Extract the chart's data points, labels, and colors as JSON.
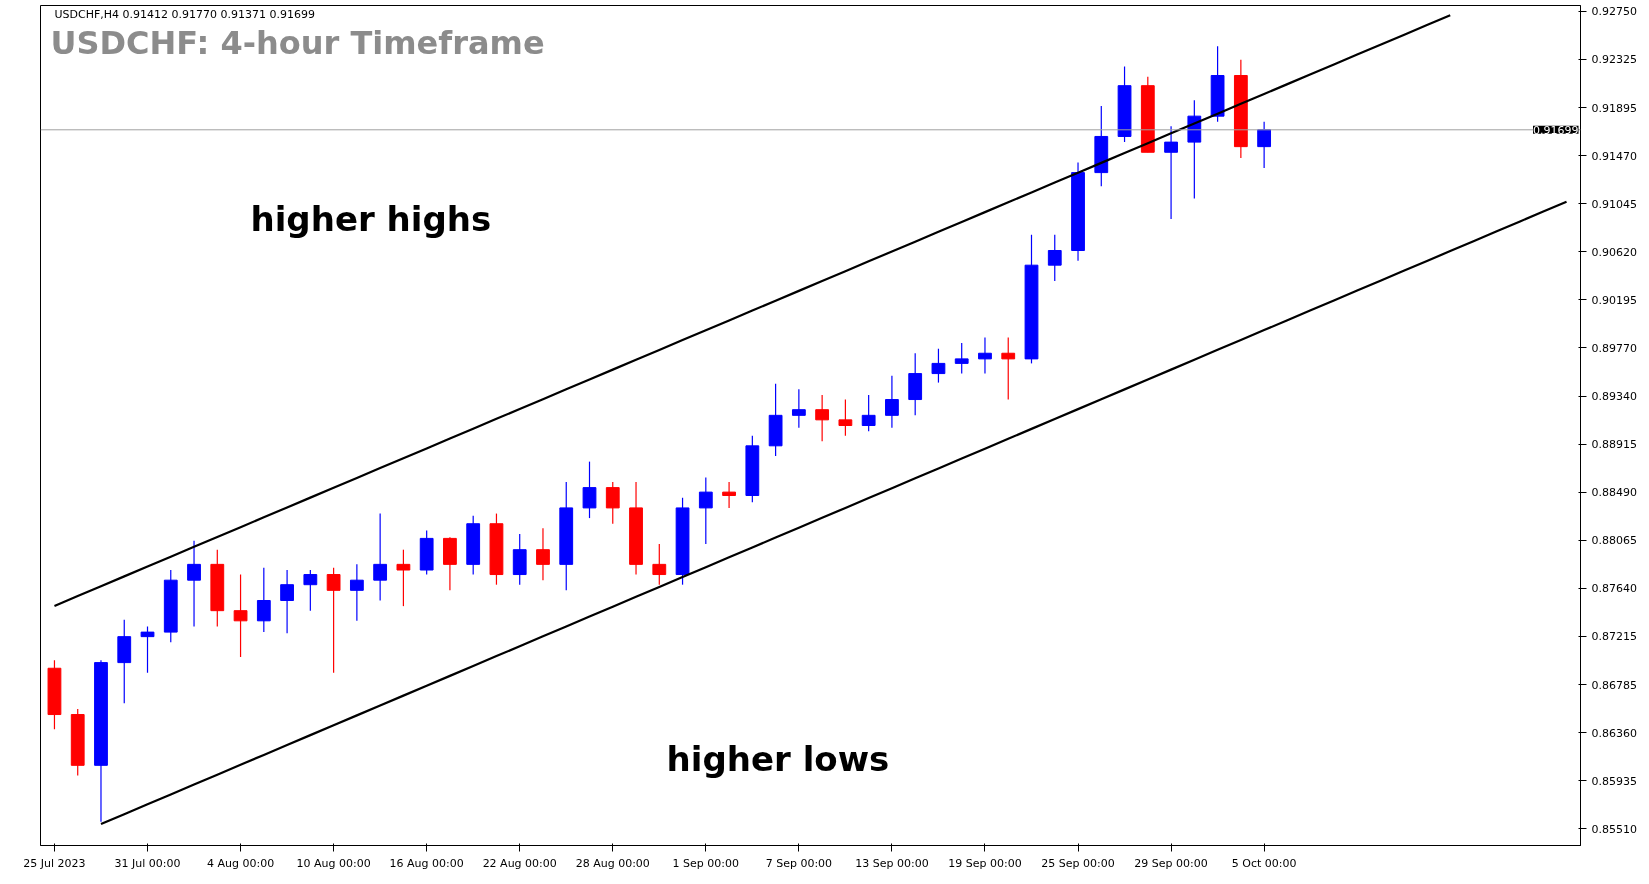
{
  "chart_data": {
    "type": "candlestick",
    "title": "USDCHF: 4-hour Timeframe",
    "annotations": [
      "USDCHF,H4  0.91412 0.91770 0.91371 0.91699",
      "higher highs",
      "higher lows"
    ],
    "categories": [
      "25 Jul 2023",
      null,
      null,
      null,
      "31 Jul 00:00",
      null,
      null,
      null,
      "4 Aug 00:00",
      null,
      null,
      null,
      "10 Aug 00:00",
      null,
      null,
      null,
      "16 Aug 00:00",
      null,
      null,
      null,
      "22 Aug 00:00",
      null,
      null,
      null,
      "28 Aug 00:00",
      null,
      null,
      null,
      "1 Sep 00:00",
      null,
      null,
      null,
      "7 Sep 00:00",
      null,
      null,
      null,
      "13 Sep 00:00",
      null,
      null,
      null,
      "19 Sep 00:00",
      null,
      null,
      null,
      "25 Sep 00:00",
      null,
      null,
      null,
      "29 Sep 00:00",
      null,
      null,
      null,
      "5 Oct 00:00",
      null,
      null,
      null,
      null,
      null,
      null,
      null,
      null,
      null,
      null,
      null,
      null,
      null
    ],
    "ohlc": [
      [
        0.8693,
        0.87,
        0.8639,
        0.8652
      ],
      [
        0.8652,
        0.8657,
        0.8598,
        0.8607
      ],
      [
        0.8607,
        0.87,
        0.8557,
        0.8698
      ],
      [
        0.8698,
        0.8736,
        0.8662,
        0.8721
      ],
      [
        0.8721,
        0.873,
        0.8689,
        0.8725
      ],
      [
        0.8725,
        0.878,
        0.8716,
        0.8771
      ],
      [
        0.8771,
        0.8806,
        0.873,
        0.8785
      ],
      [
        0.8785,
        0.8798,
        0.873,
        0.8744
      ],
      [
        0.8744,
        0.8776,
        0.8703,
        0.8735
      ],
      [
        0.8735,
        0.8782,
        0.8725,
        0.8753
      ],
      [
        0.8753,
        0.878,
        0.8724,
        0.8767
      ],
      [
        0.8767,
        0.878,
        0.8744,
        0.8776
      ],
      [
        0.8776,
        0.8782,
        0.8689,
        0.8762
      ],
      [
        0.8762,
        0.8785,
        0.8735,
        0.8771
      ],
      [
        0.8771,
        0.883,
        0.8753,
        0.8785
      ],
      [
        0.8785,
        0.8798,
        0.8748,
        0.878
      ],
      [
        0.878,
        0.8815,
        0.8776,
        0.8808
      ],
      [
        0.8808,
        0.8809,
        0.8762,
        0.8785
      ],
      [
        0.8785,
        0.8828,
        0.8776,
        0.8821
      ],
      [
        0.8821,
        0.883,
        0.8767,
        0.8776
      ],
      [
        0.8776,
        0.8812,
        0.8767,
        0.8798
      ],
      [
        0.8798,
        0.8817,
        0.8771,
        0.8785
      ],
      [
        0.8785,
        0.8858,
        0.8762,
        0.8835
      ],
      [
        0.8835,
        0.8876,
        0.8826,
        0.8853
      ],
      [
        0.8853,
        0.8858,
        0.8821,
        0.8835
      ],
      [
        0.8835,
        0.8858,
        0.8776,
        0.8785
      ],
      [
        0.8785,
        0.8803,
        0.8767,
        0.8776
      ],
      [
        0.8776,
        0.8844,
        0.8767,
        0.8835
      ],
      [
        0.8835,
        0.8862,
        0.8803,
        0.8849
      ],
      [
        0.8849,
        0.8858,
        0.8835,
        0.8846
      ],
      [
        0.8846,
        0.8899,
        0.884,
        0.889
      ],
      [
        0.889,
        0.8945,
        0.8881,
        0.8917
      ],
      [
        0.8917,
        0.894,
        0.8906,
        0.8922
      ],
      [
        0.8922,
        0.8935,
        0.8894,
        0.8913
      ],
      [
        0.8913,
        0.8931,
        0.8899,
        0.8908
      ],
      [
        0.8908,
        0.8935,
        0.8903,
        0.8917
      ],
      [
        0.8917,
        0.8952,
        0.8906,
        0.8931
      ],
      [
        0.8931,
        0.8972,
        0.8917,
        0.8954
      ],
      [
        0.8954,
        0.8976,
        0.8946,
        0.8963
      ],
      [
        0.8963,
        0.8981,
        0.8954,
        0.8967
      ],
      [
        0.8967,
        0.8986,
        0.8954,
        0.8972
      ],
      [
        0.8972,
        0.8986,
        0.8931,
        0.8967
      ],
      [
        0.8967,
        0.9077,
        0.8963,
        0.905
      ],
      [
        0.905,
        0.9077,
        0.9036,
        0.9063
      ],
      [
        0.9063,
        0.9141,
        0.9054,
        0.9132
      ],
      [
        0.9132,
        0.9191,
        0.912,
        0.9164
      ],
      [
        0.9164,
        0.9226,
        0.9159,
        0.9209
      ],
      [
        0.9209,
        0.9217,
        0.915,
        0.915
      ],
      [
        0.915,
        0.9173,
        0.9091,
        0.9159
      ],
      [
        0.9159,
        0.9196,
        0.9109,
        0.9182
      ],
      [
        0.9182,
        0.9244,
        0.9177,
        0.9218
      ],
      [
        0.9218,
        0.9232,
        0.9145,
        0.9155
      ],
      [
        0.9155,
        0.9177,
        0.9136,
        0.917
      ],
      null,
      null,
      null,
      null,
      null,
      null,
      null,
      null,
      null,
      null,
      null,
      null,
      null
    ],
    "colors": [
      "#ff0000",
      "#ff0000",
      "#0000ff",
      "#0000ff",
      "#0000ff",
      "#0000ff",
      "#0000ff",
      "#ff0000",
      "#ff0000",
      "#0000ff",
      "#0000ff",
      "#0000ff",
      "#ff0000",
      "#0000ff",
      "#0000ff",
      "#ff0000",
      "#0000ff",
      "#ff0000",
      "#0000ff",
      "#ff0000",
      "#0000ff",
      "#ff0000",
      "#0000ff",
      "#0000ff",
      "#ff0000",
      "#ff0000",
      "#ff0000",
      "#0000ff",
      "#0000ff",
      "#ff0000",
      "#0000ff",
      "#0000ff",
      "#0000ff",
      "#ff0000",
      "#ff0000",
      "#0000ff",
      "#0000ff",
      "#0000ff",
      "#0000ff",
      "#0000ff",
      "#0000ff",
      "#ff0000",
      "#0000ff",
      "#0000ff",
      "#0000ff",
      "#0000ff",
      "#0000ff",
      "#ff0000",
      "#0000ff",
      "#0000ff",
      "#0000ff",
      "#ff0000",
      "#0000ff",
      null,
      null,
      null,
      null,
      null,
      null,
      null,
      null,
      null,
      null,
      null,
      null,
      null
    ],
    "series": [
      {
        "type": "line",
        "color": "#000000",
        "values": [
          0.87482,
          0.875692,
          0.876564,
          0.877436,
          0.878308,
          0.87918,
          0.880052,
          0.880924,
          0.881796,
          0.882668,
          0.88354,
          0.884412,
          0.885284,
          0.886156,
          0.887028,
          0.8879,
          0.888772,
          0.889644,
          0.890516,
          0.891388,
          0.89226,
          0.893132,
          0.894004,
          0.894876,
          0.895748,
          0.89662,
          0.897492,
          0.898364,
          0.899236,
          0.900108,
          0.90098,
          0.901852,
          0.902724,
          0.903596,
          0.904468,
          0.90534,
          0.906212,
          0.907084,
          0.907956,
          0.908828,
          0.9097,
          0.910572,
          0.911444,
          0.912316,
          0.913188,
          0.91406,
          0.914932,
          0.915804,
          0.916676,
          0.917548,
          0.91842,
          0.919292,
          0.920164,
          0.921036,
          0.921908,
          0.92278,
          0.923652,
          0.924524,
          0.925396,
          0.926268,
          0.92714,
          null,
          null,
          null,
          null,
          null
        ]
      },
      {
        "type": "line",
        "color": "#000000",
        "values": [
          null,
          null,
          0.8555,
          0.856375,
          0.85725,
          0.858125,
          0.859,
          0.859875,
          0.86075,
          0.861625,
          0.8625,
          0.863375,
          0.86425,
          0.865125,
          0.866,
          0.866875,
          0.86775,
          0.868625,
          0.8695,
          0.870375,
          0.87125,
          0.872125,
          0.873,
          0.873875,
          0.87475,
          0.875625,
          0.8765,
          0.877375,
          0.87825,
          0.879125,
          0.88,
          0.880875,
          0.88175,
          0.882625,
          0.8835,
          0.884375,
          0.88525,
          0.886125,
          0.887,
          0.887875,
          0.88875,
          0.889625,
          0.8905,
          0.891375,
          0.89225,
          0.893125,
          0.894,
          0.894875,
          0.89575,
          0.896625,
          0.8975,
          0.898375,
          0.89925,
          0.900125,
          0.901,
          0.901875,
          0.90275,
          0.903625,
          0.9045,
          0.905375,
          0.90625,
          0.907125,
          0.908,
          0.908875,
          0.90975,
          0.910625
        ]
      }
    ],
    "ref_lines": [
      {
        "axis": "y",
        "value": 0.91699,
        "label": "0.91699",
        "color": "#a0a0a0"
      }
    ],
    "ylim": [
      0.8536,
      0.928
    ],
    "yticks": [
      {
        "value": 0.9275,
        "label": "0.92750"
      },
      {
        "value": 0.92325,
        "label": "0.92325"
      },
      {
        "value": 0.91895,
        "label": "0.91895"
      },
      {
        "value": 0.9147,
        "label": "0.91470"
      },
      {
        "value": 0.91045,
        "label": "0.91045"
      },
      {
        "value": 0.9062,
        "label": "0.90620"
      },
      {
        "value": 0.90195,
        "label": "0.90195"
      },
      {
        "value": 0.8977,
        "label": "0.89770"
      },
      {
        "value": 0.8934,
        "label": "0.89340"
      },
      {
        "value": 0.88915,
        "label": "0.88915"
      },
      {
        "value": 0.8849,
        "label": "0.88490"
      },
      {
        "value": 0.88065,
        "label": "0.88065"
      },
      {
        "value": 0.8764,
        "label": "0.87640"
      },
      {
        "value": 0.87215,
        "label": "0.87215"
      },
      {
        "value": 0.86785,
        "label": "0.86785"
      },
      {
        "value": 0.8636,
        "label": "0.86360"
      },
      {
        "value": 0.85935,
        "label": "0.85935"
      },
      {
        "value": 0.8551,
        "label": "0.85510"
      }
    ],
    "grid": false
  }
}
